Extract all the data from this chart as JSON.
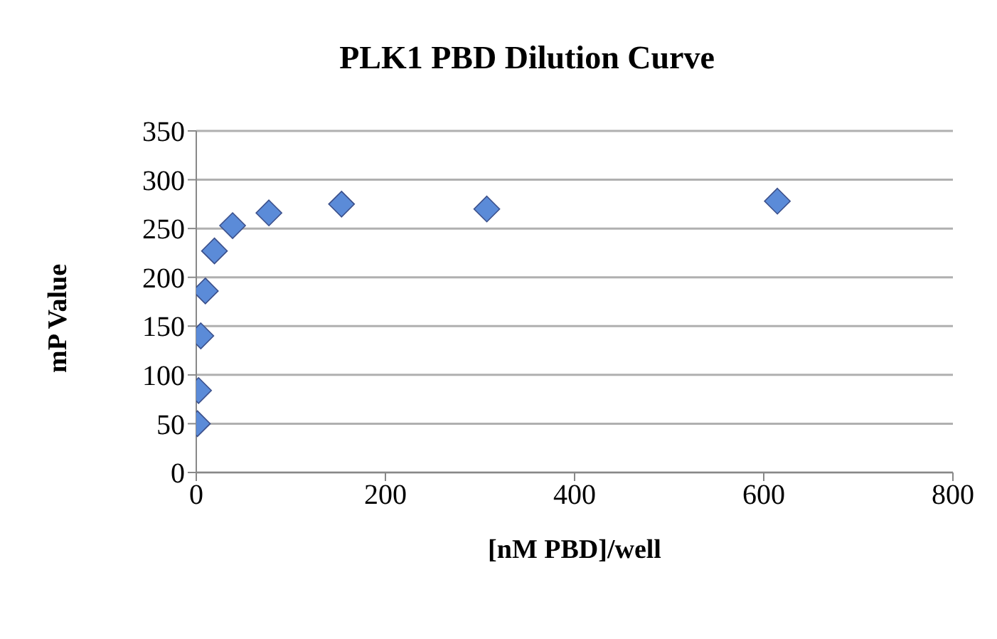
{
  "chart_data": {
    "type": "scatter",
    "title": "PLK1 PBD Dilution Curve",
    "xlabel": "[nM PBD]/well",
    "ylabel": "mP  Value",
    "x": [
      1.2,
      2.4,
      4.8,
      9.6,
      19.2,
      38.4,
      76.8,
      153.6,
      307.2,
      614.4
    ],
    "series": [
      {
        "color": "#5b8bd8",
        "values": [
          50,
          84,
          140,
          186,
          227,
          253,
          266,
          275,
          270,
          278
        ]
      }
    ],
    "xlim": [
      0,
      800
    ],
    "xticks": [
      0,
      200,
      400,
      600,
      800
    ],
    "ylim": [
      0,
      350
    ],
    "yticks": [
      0,
      50,
      100,
      150,
      200,
      250,
      300,
      350
    ],
    "grid": "y",
    "marker": "diamond"
  }
}
